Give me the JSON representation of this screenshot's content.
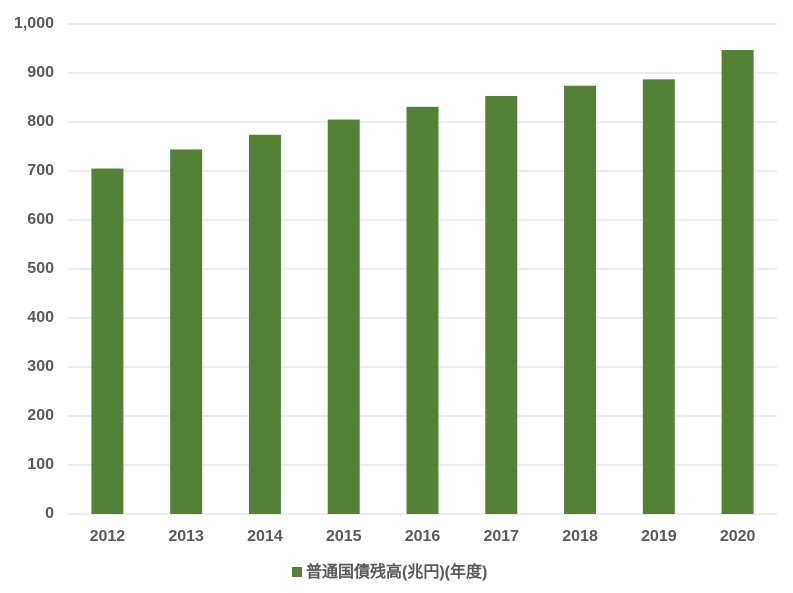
{
  "chart_data": {
    "type": "bar",
    "categories": [
      "2012",
      "2013",
      "2014",
      "2015",
      "2016",
      "2017",
      "2018",
      "2019",
      "2020"
    ],
    "series": [
      {
        "name": "普通国債残高(兆円)(年度)",
        "color": "#538135",
        "values": [
          705,
          744,
          774,
          805,
          831,
          853,
          874,
          887,
          947
        ]
      }
    ],
    "ylim": [
      0,
      1000
    ],
    "yticks": [
      0,
      100,
      200,
      300,
      400,
      500,
      600,
      700,
      800,
      900,
      {
        "value": 1000,
        "label": "1,000"
      }
    ],
    "grid": true,
    "legend": "bottom"
  }
}
